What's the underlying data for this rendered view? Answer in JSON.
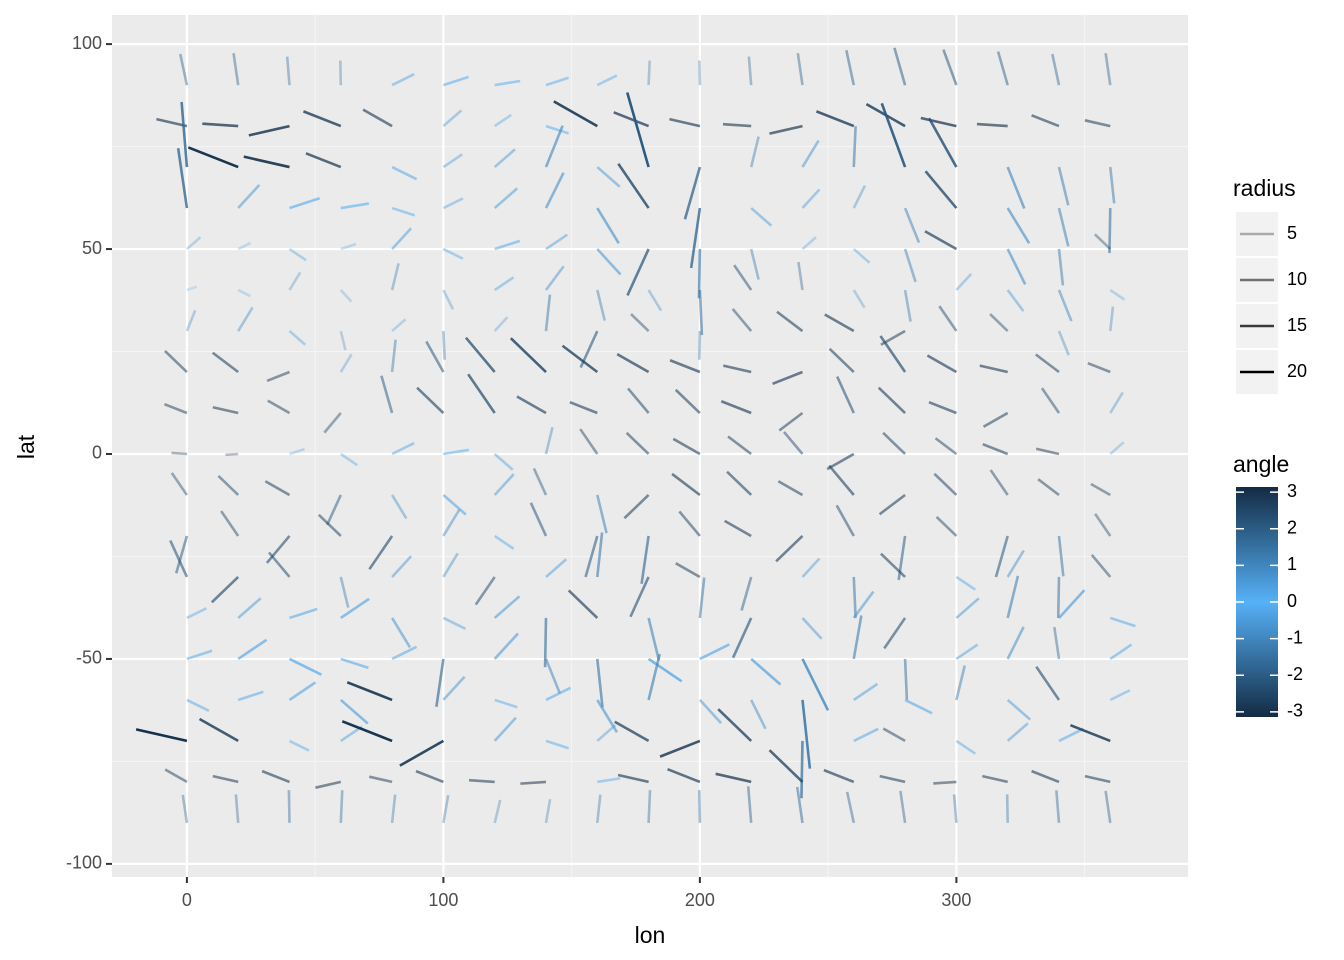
{
  "chart_data": {
    "type": "spoke",
    "x_label": "lon",
    "y_label": "lat",
    "xlim": [
      -29.2,
      390.3
    ],
    "ylim": [
      -103.2,
      107.1
    ],
    "xticks": [
      0,
      100,
      200,
      300
    ],
    "yticks": [
      -100,
      -50,
      0,
      50,
      100
    ],
    "xminor": [
      50,
      150,
      250,
      350
    ],
    "yminor": [
      -75,
      -25,
      25,
      75
    ],
    "grid": true,
    "lon": [
      0,
      20,
      40,
      60,
      80,
      100,
      120,
      140,
      160,
      180,
      200,
      220,
      240,
      260,
      280,
      300,
      320,
      340,
      360
    ],
    "lat": [
      90,
      80,
      70,
      60,
      50,
      40,
      30,
      20,
      10,
      0,
      -10,
      -20,
      -30,
      -40,
      -50,
      -60,
      -70,
      -80,
      -90
    ],
    "angle": [
      [
        1.9,
        1.8,
        1.7,
        1.6,
        0.3,
        0.2,
        0.1,
        0.2,
        0.3,
        1.5,
        1.6,
        1.7,
        1.8,
        1.9,
        2.0,
        2.1,
        2.0,
        1.9,
        1.8
      ],
      [
        3.0,
        3.1,
        -3.0,
        2.9,
        2.8,
        0.5,
        0.4,
        -0.2,
        2.8,
        2.9,
        3.0,
        3.1,
        -3.0,
        2.9,
        2.8,
        3.0,
        3.1,
        2.9,
        3.0
      ],
      [
        1.7,
        2.9,
        3.0,
        2.9,
        -0.3,
        0.4,
        0.5,
        1.0,
        -0.5,
        2.0,
        -2.0,
        1.2,
        0.8,
        1.5,
        2.1,
        2.3,
        -1.0,
        -1.2,
        -1.4
      ],
      [
        1.8,
        0.6,
        0.2,
        0.1,
        -0.2,
        0.3,
        0.5,
        0.9,
        -0.8,
        2.4,
        -1.8,
        -0.5,
        0.6,
        0.9,
        -1.0,
        2.5,
        -0.8,
        -1.2,
        -1.6
      ],
      [
        0.5,
        0.3,
        -0.4,
        0.2,
        0.6,
        -0.3,
        0.2,
        0.4,
        -0.6,
        -2.2,
        -1.6,
        -1.2,
        0.5,
        -0.5,
        -1.1,
        2.8,
        -0.9,
        -1.4,
        2.6
      ],
      [
        0.2,
        -0.3,
        0.8,
        -0.6,
        1.2,
        -0.9,
        0.4,
        0.7,
        -1.2,
        -0.8,
        -1.5,
        2.4,
        1.8,
        -0.8,
        -1.3,
        0.6,
        -0.7,
        -1.0,
        -0.4
      ],
      [
        1.0,
        0.8,
        -0.5,
        -1.2,
        0.5,
        -1.5,
        0.6,
        1.4,
        -2.2,
        2.6,
        -1.6,
        2.5,
        2.7,
        2.8,
        -2.8,
        2.4,
        2.6,
        -1.0,
        1.4
      ],
      [
        2.6,
        2.7,
        -2.9,
        0.8,
        1.4,
        2.3,
        2.5,
        2.6,
        2.7,
        2.8,
        2.9,
        3.0,
        -2.9,
        2.6,
        2.4,
        2.8,
        3.0,
        2.7,
        2.9
      ],
      [
        2.9,
        3.0,
        2.8,
        -2.5,
        2.0,
        2.6,
        2.4,
        2.8,
        2.9,
        2.5,
        2.6,
        2.9,
        -2.7,
        2.2,
        2.6,
        2.9,
        -2.8,
        2.4,
        0.8
      ],
      [
        3.1,
        -3.1,
        0.2,
        -0.4,
        0.3,
        0.1,
        -0.5,
        1.2,
        2.4,
        2.6,
        2.8,
        2.7,
        2.5,
        -2.8,
        2.6,
        2.7,
        2.9,
        3.0,
        0.5
      ],
      [
        2.4,
        2.6,
        2.8,
        -2.2,
        -0.8,
        -0.5,
        0.6,
        2.2,
        -1.2,
        -2.6,
        2.7,
        2.6,
        2.8,
        2.5,
        -2.7,
        2.6,
        2.4,
        2.7,
        2.8
      ],
      [
        -2.0,
        2.4,
        -2.5,
        2.6,
        -2.4,
        0.8,
        -0.4,
        2.2,
        -2.0,
        -1.8,
        2.5,
        2.8,
        -2.6,
        2.3,
        -1.8,
        2.6,
        -2.0,
        -1.4,
        2.4
      ],
      [
        2.2,
        -2.6,
        2.5,
        -1.2,
        0.6,
        0.8,
        -2.4,
        0.5,
        1.4,
        -2.2,
        2.8,
        -2.0,
        0.6,
        -1.5,
        2.6,
        -0.4,
        0.8,
        -1.6,
        2.5
      ],
      [
        0.3,
        0.5,
        0.2,
        0.4,
        -0.8,
        -0.3,
        0.5,
        -1.6,
        2.6,
        -1.2,
        1.4,
        -2.2,
        -0.6,
        0.7,
        -2.4,
        0.5,
        1.2,
        0.6,
        -0.2
      ],
      [
        0.2,
        0.4,
        -0.3,
        -0.2,
        0.3,
        -1.8,
        0.6,
        -1.0,
        -1.4,
        -0.4,
        0.3,
        -0.5,
        -0.9,
        1.3,
        -1.5,
        0.4,
        0.9,
        1.8,
        0.4
      ],
      [
        -0.3,
        0.2,
        0.4,
        -0.5,
        2.9,
        0.6,
        -0.2,
        0.3,
        -0.8,
        1.2,
        -0.6,
        -0.9,
        -1.4,
        0.4,
        -0.3,
        1.2,
        -0.5,
        2.4,
        0.3
      ],
      [
        3.0,
        2.8,
        -0.3,
        0.4,
        2.9,
        -2.8,
        0.6,
        -0.2,
        0.5,
        2.8,
        -2.9,
        2.6,
        -1.6,
        0.3,
        2.8,
        -0.4,
        0.5,
        0.3,
        2.9
      ],
      [
        2.8,
        3.0,
        2.9,
        -3.0,
        3.0,
        2.9,
        3.1,
        -3.1,
        0.1,
        3.0,
        2.9,
        3.0,
        2.6,
        2.9,
        3.0,
        -3.1,
        3.0,
        2.9,
        3.0
      ],
      [
        1.8,
        1.7,
        1.6,
        1.5,
        1.4,
        1.3,
        1.2,
        1.3,
        1.4,
        1.5,
        1.6,
        1.7,
        1.8,
        1.9,
        1.8,
        1.7,
        1.6,
        1.7,
        1.8
      ]
    ],
    "radius": [
      [
        8,
        8,
        7,
        6,
        9,
        10,
        10,
        9,
        8,
        6,
        6,
        7,
        8,
        9,
        10,
        10,
        9,
        8,
        8
      ],
      [
        12,
        14,
        16,
        15,
        12,
        8,
        7,
        9,
        18,
        14,
        12,
        11,
        13,
        15,
        16,
        14,
        12,
        11,
        10
      ],
      [
        16,
        20,
        18,
        14,
        10,
        8,
        9,
        12,
        10,
        20,
        14,
        8,
        9,
        10,
        18,
        16,
        12,
        10,
        9
      ],
      [
        15,
        10,
        12,
        11,
        9,
        8,
        10,
        11,
        12,
        16,
        15,
        9,
        8,
        7,
        10,
        15,
        12,
        10,
        11
      ],
      [
        6,
        5,
        7,
        6,
        9,
        8,
        10,
        9,
        11,
        14,
        12,
        8,
        6,
        7,
        9,
        13,
        11,
        9,
        7
      ],
      [
        4,
        5,
        6,
        5,
        7,
        6,
        8,
        9,
        8,
        7,
        11,
        9,
        7,
        6,
        8,
        7,
        8,
        9,
        6
      ],
      [
        6,
        8,
        7,
        5,
        6,
        7,
        6,
        9,
        11,
        8,
        7,
        9,
        11,
        12,
        10,
        9,
        8,
        7,
        6
      ],
      [
        10,
        11,
        9,
        6,
        8,
        10,
        14,
        16,
        15,
        13,
        12,
        11,
        12,
        11,
        13,
        12,
        11,
        10,
        9
      ],
      [
        9,
        10,
        9,
        8,
        10,
        12,
        14,
        12,
        11,
        10,
        11,
        12,
        10,
        11,
        12,
        11,
        10,
        9,
        7
      ],
      [
        6,
        5,
        6,
        7,
        9,
        10,
        8,
        7,
        9,
        10,
        11,
        10,
        9,
        11,
        10,
        9,
        10,
        9,
        6
      ],
      [
        8,
        9,
        10,
        9,
        8,
        10,
        9,
        8,
        10,
        11,
        12,
        11,
        10,
        12,
        11,
        10,
        9,
        9,
        8
      ],
      [
        10,
        9,
        11,
        10,
        12,
        9,
        8,
        10,
        11,
        12,
        10,
        11,
        12,
        10,
        11,
        9,
        11,
        10,
        8
      ],
      [
        11,
        12,
        10,
        8,
        9,
        8,
        10,
        9,
        11,
        12,
        10,
        9,
        8,
        10,
        11,
        8,
        9,
        10,
        9
      ],
      [
        8,
        10,
        11,
        12,
        10,
        9,
        11,
        12,
        13,
        11,
        10,
        12,
        9,
        10,
        11,
        10,
        11,
        12,
        10
      ],
      [
        10,
        12,
        13,
        11,
        10,
        12,
        11,
        10,
        12,
        14,
        12,
        13,
        16,
        11,
        10,
        9,
        10,
        8,
        9
      ],
      [
        9,
        10,
        11,
        12,
        18,
        10,
        9,
        10,
        11,
        12,
        10,
        9,
        17,
        10,
        11,
        9,
        10,
        12,
        8
      ],
      [
        20,
        16,
        8,
        9,
        20,
        18,
        10,
        9,
        8,
        14,
        16,
        15,
        14,
        10,
        9,
        8,
        9,
        10,
        16
      ],
      [
        9,
        10,
        11,
        10,
        9,
        11,
        10,
        10,
        9,
        12,
        13,
        14,
        15,
        12,
        10,
        9,
        10,
        11,
        10
      ],
      [
        7,
        7,
        8,
        8,
        7,
        7,
        6,
        6,
        7,
        8,
        8,
        9,
        9,
        8,
        8,
        7,
        7,
        8,
        8
      ]
    ],
    "radius_legend": {
      "title": "radius",
      "breaks": [
        5,
        10,
        15,
        20
      ]
    },
    "color_legend": {
      "title": "angle",
      "lim": [
        -3.14,
        3.14
      ],
      "ticks": [
        -3,
        -2,
        -1,
        0,
        1,
        2,
        3
      ],
      "colors": [
        "#132B43",
        "#56B1F7",
        "#132B43"
      ]
    }
  }
}
